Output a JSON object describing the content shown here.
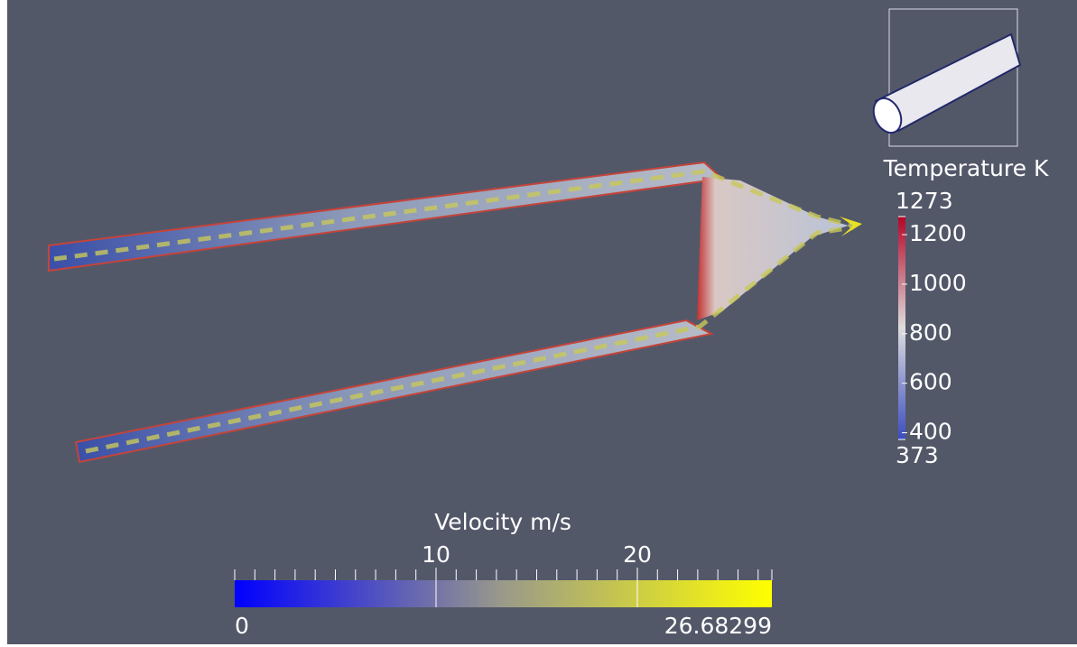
{
  "temperature_bar": {
    "title": "Temperature K",
    "min": 373,
    "max": 1273,
    "ticks": [
      400,
      600,
      800,
      1000,
      1200
    ]
  },
  "velocity_bar": {
    "title": "Velocity m/s",
    "min": 0,
    "max": 26.68299,
    "ticks": [
      10,
      20
    ],
    "minor_ticks": [
      0,
      1,
      2,
      3,
      4,
      5,
      6,
      7,
      8,
      9,
      10,
      11,
      12,
      13,
      14,
      15,
      16,
      17,
      18,
      19,
      20,
      21,
      22,
      23,
      24,
      25,
      26
    ]
  }
}
